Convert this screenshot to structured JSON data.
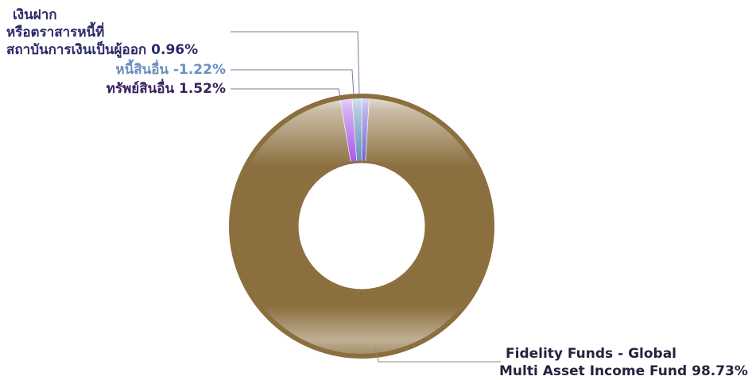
{
  "chart_data": {
    "type": "pie",
    "variant": "donut",
    "title": "",
    "slices": [
      {
        "label_lines": [
          "Fidelity Funds - Global",
          "Multi Asset Income Fund"
        ],
        "value": 98.73,
        "value_text": "98.73%",
        "color": "#8B6F3E",
        "text_color": "#2B1F3D"
      },
      {
        "label_lines": [
          "ทรัพย์สินอื่น"
        ],
        "value": 1.52,
        "value_text": "1.52%",
        "color": "#A64FE6",
        "text_color": "#3A2060"
      },
      {
        "label_lines": [
          "หนี้สินอื่น"
        ],
        "value": -1.22,
        "value_text": "-1.22%",
        "color": "#5B89B5",
        "text_color": "#6A8FBF"
      },
      {
        "label_lines": [
          "เงินฝาก",
          "หรือตราสารหนี้ที่",
          "สถาบันการเงินเป็นผู้ออก"
        ],
        "value": 0.96,
        "value_text": "0.96%",
        "color": "#6B5BD6",
        "text_color": "#2A2A6A"
      }
    ],
    "legend": "none"
  }
}
